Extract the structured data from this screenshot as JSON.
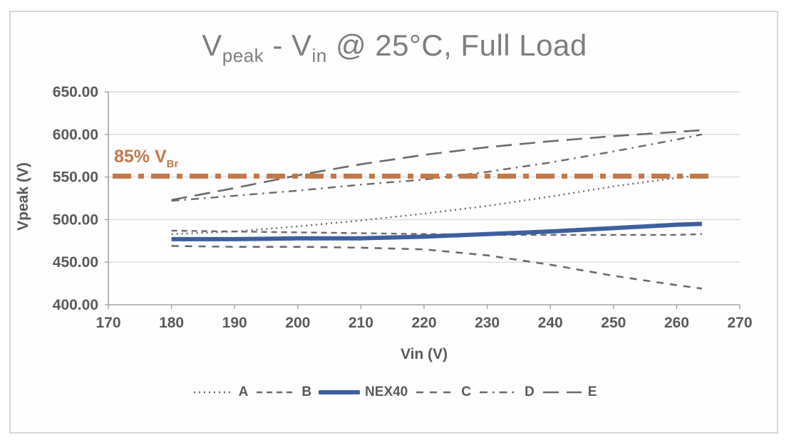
{
  "title": {
    "p1": "V",
    "s1": "peak",
    "p2": " - V",
    "s2": "in",
    "p3": " @ 25°C, Full Load"
  },
  "axes": {
    "y_label": "Vpeak (V)",
    "x_label": "Vin (V)",
    "y_ticks": [
      "650.00",
      "600.00",
      "550.00",
      "500.00",
      "450.00",
      "400.00"
    ],
    "y_tick_values": [
      650,
      600,
      550,
      500,
      450,
      400
    ],
    "x_ticks": [
      "170",
      "180",
      "190",
      "200",
      "210",
      "220",
      "230",
      "240",
      "250",
      "260",
      "270"
    ],
    "x_tick_values": [
      170,
      180,
      190,
      200,
      210,
      220,
      230,
      240,
      250,
      260,
      270
    ]
  },
  "threshold": {
    "label_main": "85% V",
    "label_sub": "Br"
  },
  "colors": {
    "gray_line": "#6b6b6b",
    "blue_line": "#3e5f9e",
    "orange_line": "#c1784a",
    "gridline": "#d9d9d9",
    "axis": "#a3a3a3",
    "tick_text": "#5a5a5a",
    "title_text": "#7e7e7e"
  },
  "chart_data": {
    "type": "line",
    "title": "Vpeak - Vin @ 25°C, Full Load",
    "xlabel": "Vin (V)",
    "ylabel": "Vpeak (V)",
    "xlim": [
      170,
      270
    ],
    "ylim": [
      400,
      650
    ],
    "grid": "horizontal-only",
    "legend_position": "bottom",
    "x": [
      180,
      190,
      200,
      210,
      220,
      230,
      240,
      250,
      260,
      264
    ],
    "series": [
      {
        "name": "A",
        "color": "#6b6b6b",
        "dash": "2 5",
        "width": 2.4,
        "values": [
          483,
          486,
          492,
          499,
          507,
          516,
          527,
          539,
          549,
          552
        ]
      },
      {
        "name": "B",
        "color": "#6b6b6b",
        "dash": "8 6",
        "width": 2.4,
        "values": [
          487,
          486,
          485,
          484,
          483,
          482,
          482,
          482,
          482,
          483
        ]
      },
      {
        "name": "NEX40",
        "color": "#3e5f9e",
        "dash": "",
        "width": 6,
        "values": [
          477,
          477,
          478,
          478,
          480,
          483,
          486,
          490,
          494,
          495
        ]
      },
      {
        "name": "C",
        "color": "#6b6b6b",
        "dash": "10 9",
        "width": 2.6,
        "values": [
          469,
          468,
          468,
          467,
          465,
          458,
          447,
          434,
          423,
          419
        ]
      },
      {
        "name": "D",
        "color": "#6b6b6b",
        "dash": "11 7 2.5 7",
        "width": 2.4,
        "values": [
          522,
          528,
          534,
          541,
          547,
          556,
          567,
          580,
          594,
          600
        ]
      },
      {
        "name": "E",
        "color": "#6b6b6b",
        "dash": "22 11",
        "width": 2.6,
        "values": [
          523,
          537,
          552,
          565,
          576,
          585,
          592,
          598,
          603,
          605
        ]
      }
    ],
    "threshold_line": {
      "label": "85% VBr",
      "value": 551,
      "color": "#c1784a",
      "dash": "26 10 8 10",
      "width": 7
    }
  }
}
